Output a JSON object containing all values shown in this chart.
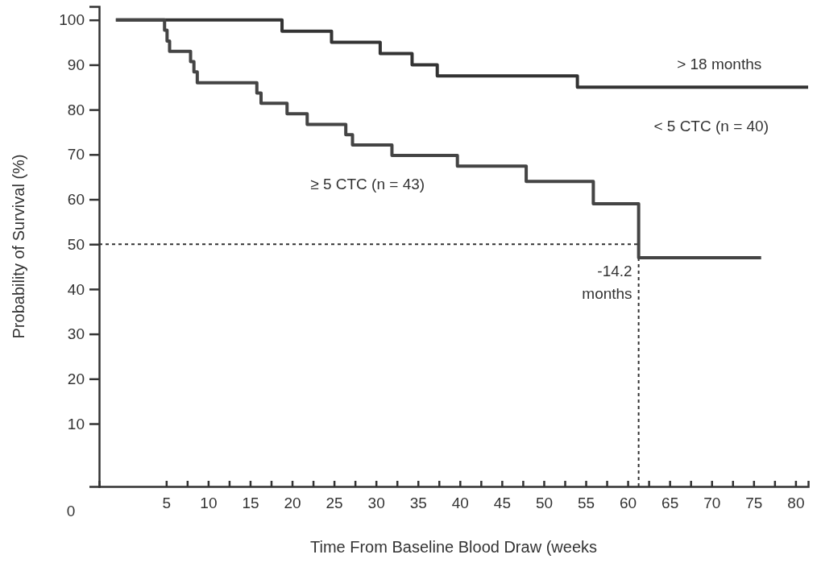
{
  "chart_data": {
    "type": "step",
    "xlabel": "Time From Baseline Blood Draw (weeks",
    "ylabel": "Probability of Survival (%)",
    "xlim": [
      -3,
      81.5
    ],
    "ylim": [
      -4,
      103
    ],
    "xticks": [
      5,
      {
        "value": 7.5,
        "label": null
      },
      10,
      {
        "value": 12.5,
        "label": null
      },
      15,
      {
        "value": 17.5,
        "label": null
      },
      20,
      {
        "value": 22.5,
        "label": null
      },
      25,
      {
        "value": 27.5,
        "label": null
      },
      30,
      {
        "value": 32.5,
        "label": null
      },
      35,
      {
        "value": 37.5,
        "label": null
      },
      40,
      {
        "value": 42.5,
        "label": null
      },
      45,
      {
        "value": 47.5,
        "label": null
      },
      50,
      {
        "value": 52.5,
        "label": null
      },
      55,
      {
        "value": 57.5,
        "label": null
      },
      60,
      {
        "value": 62.5,
        "label": null
      },
      65,
      {
        "value": 67.5,
        "label": null
      },
      70,
      {
        "value": 72.5,
        "label": null
      },
      75,
      {
        "value": 77.5,
        "label": null
      },
      80
    ],
    "yticks": [
      10,
      20,
      30,
      40,
      50,
      60,
      70,
      80,
      90,
      100
    ],
    "grid": false,
    "line_style": "solid",
    "marker": "none",
    "series": [
      {
        "name": "< 5 CTC (n = 40)",
        "color": "#333333",
        "x": [
          -1,
          18.8,
          24.7,
          30.5,
          34.3,
          37.3,
          54,
          81.5
        ],
        "values": [
          100,
          97.5,
          95,
          92.5,
          90,
          87.5,
          85,
          85
        ]
      },
      {
        "name": "≥ 5 CTC (n = 43)",
        "color": "#444444",
        "x": [
          -1,
          4.8,
          5.1,
          5.4,
          7.9,
          8.3,
          8.7,
          15.8,
          16.3,
          19.4,
          21.8,
          26.4,
          27.2,
          31.9,
          39.7,
          47.9,
          55.9,
          61.3,
          75.9
        ],
        "values": [
          100,
          97.7,
          95.3,
          93,
          90.7,
          88.4,
          86,
          83.7,
          81.4,
          79.1,
          76.7,
          74.4,
          72.1,
          69.8,
          67.4,
          64,
          59,
          47,
          47
        ]
      }
    ],
    "ref_lines": [
      {
        "axis": "y",
        "value": 50,
        "line_style": "dotted",
        "color": "#333333"
      },
      {
        "axis": "x",
        "value": 61.3,
        "label": "-14.2 months",
        "line_style": "dotted",
        "color": "#333333"
      }
    ],
    "annotations": [
      "> 18 months",
      "0"
    ]
  }
}
